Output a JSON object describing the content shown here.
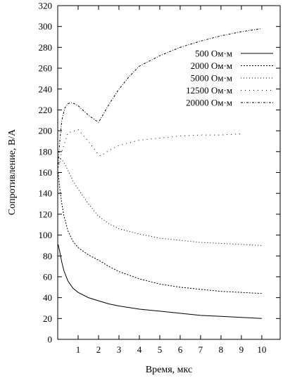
{
  "chart_data": {
    "type": "line",
    "title": "",
    "xlabel": "Время, мкс",
    "ylabel": "Сопротивление, В/А",
    "xlim": [
      0,
      10.9
    ],
    "ylim": [
      0,
      320
    ],
    "x_ticks": [
      1,
      2,
      3,
      4,
      5,
      6,
      7,
      8,
      9,
      10
    ],
    "y_ticks": [
      0,
      20,
      40,
      60,
      80,
      100,
      120,
      140,
      160,
      180,
      200,
      220,
      240,
      260,
      280,
      300,
      320
    ],
    "grid": false,
    "legend_position": "top-right",
    "series": [
      {
        "name": "500 Ом·м",
        "style": "solid",
        "x": [
          0.02,
          0.1,
          0.2,
          0.3,
          0.5,
          0.75,
          1.0,
          1.5,
          2.0,
          2.5,
          3.0,
          4.0,
          5.0,
          6.0,
          7.0,
          8.0,
          9.0,
          10.0
        ],
        "y": [
          91,
          84,
          74,
          66,
          56,
          49,
          45,
          40,
          37,
          34,
          32,
          29,
          27,
          25,
          23,
          22,
          21,
          20
        ]
      },
      {
        "name": "2000 Ом·м",
        "style": "dashed",
        "x": [
          0.02,
          0.1,
          0.2,
          0.3,
          0.5,
          0.75,
          1.0,
          1.5,
          2.0,
          2.5,
          3.0,
          4.0,
          5.0,
          6.0,
          7.0,
          8.0,
          9.0,
          10.0
        ],
        "y": [
          160,
          145,
          130,
          119,
          104,
          94,
          88,
          81,
          76,
          70,
          65,
          58,
          53,
          50,
          48,
          46,
          45,
          44
        ]
      },
      {
        "name": "5000 Ом·м",
        "style": "dotted",
        "x": [
          0.02,
          0.15,
          0.3,
          0.5,
          0.75,
          1.0,
          1.5,
          2.0,
          2.5,
          3.0,
          4.0,
          5.0,
          6.0,
          7.0,
          8.0,
          9.0,
          10.0
        ],
        "y": [
          165,
          173,
          170,
          162,
          152,
          144,
          130,
          118,
          111,
          106,
          101,
          97,
          95,
          93,
          92,
          91,
          90
        ]
      },
      {
        "name": "12500 Ом·м",
        "style": "sparse-dotted",
        "x": [
          0.02,
          0.2,
          0.5,
          1.0,
          1.5,
          2.0,
          2.1,
          2.5,
          3.0,
          4.0,
          5.0,
          6.0,
          7.0,
          8.0,
          9.0
        ],
        "y": [
          165,
          180,
          198,
          201,
          190,
          177,
          176,
          181,
          186,
          191,
          193,
          195,
          196,
          196,
          197
        ]
      },
      {
        "name": "20000 Ом·м",
        "style": "dash-dot",
        "x": [
          0.02,
          0.1,
          0.2,
          0.35,
          0.5,
          0.7,
          1.0,
          1.5,
          2.0,
          2.5,
          3.0,
          3.5,
          4.0,
          5.0,
          6.0,
          7.0,
          8.0,
          9.0,
          10.0
        ],
        "y": [
          168,
          190,
          210,
          222,
          226,
          227,
          224,
          215,
          208,
          225,
          240,
          252,
          262,
          272,
          280,
          286,
          291,
          295,
          298
        ]
      }
    ]
  }
}
